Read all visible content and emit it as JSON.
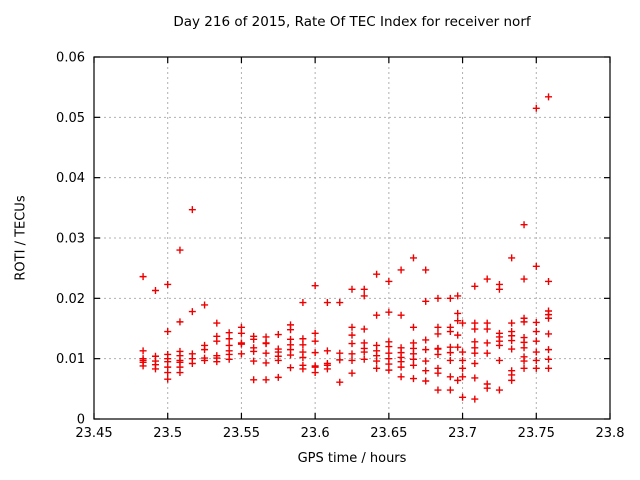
{
  "title": "Day 216 of 2015, Rate Of TEC Index for receiver norf",
  "colors": {
    "background": "#ffffff",
    "marker": "#ee0000",
    "grid": "#b0b0b0",
    "border": "#000000",
    "text": "#000000"
  },
  "chart_data": {
    "type": "scatter",
    "title": "Day 216 of 2015, Rate Of TEC Index for receiver norf",
    "xlabel": "GPS time / hours",
    "ylabel": "ROTI / TECUs",
    "xlim": [
      23.45,
      23.8
    ],
    "ylim": [
      0,
      0.06
    ],
    "x_ticks": [
      23.45,
      23.5,
      23.55,
      23.6,
      23.65,
      23.7,
      23.75,
      23.8
    ],
    "x_tick_labels": [
      "23.45",
      "23.5",
      "23.55",
      "23.6",
      "23.65",
      "23.7",
      "23.75",
      "23.8"
    ],
    "y_ticks": [
      0,
      0.01,
      0.02,
      0.03,
      0.04,
      0.05,
      0.06
    ],
    "y_tick_labels": [
      "0",
      "0.01",
      "0.02",
      "0.03",
      "0.04",
      "0.05",
      "0.06"
    ],
    "grid": true,
    "legend": "none",
    "marker": "plus",
    "series": [
      {
        "name": "ROTI",
        "color": "#ee0000",
        "columns": [
          {
            "x": 23.4833,
            "y": [
              0.0236,
              0.0113,
              0.01,
              0.0097,
              0.0094,
              0.0088
            ]
          },
          {
            "x": 23.4917,
            "y": [
              0.0213,
              0.0104,
              0.0096,
              0.009,
              0.0083
            ]
          },
          {
            "x": 23.5,
            "y": [
              0.0223,
              0.0145,
              0.0107,
              0.01,
              0.0095,
              0.0086,
              0.0077,
              0.0066
            ]
          },
          {
            "x": 23.5083,
            "y": [
              0.028,
              0.0161,
              0.0112,
              0.0105,
              0.0097,
              0.0094,
              0.0086,
              0.0077
            ]
          },
          {
            "x": 23.5167,
            "y": [
              0.0347,
              0.0178,
              0.0108,
              0.01,
              0.0092
            ]
          },
          {
            "x": 23.525,
            "y": [
              0.0189,
              0.0122,
              0.0115,
              0.0101,
              0.0097
            ]
          },
          {
            "x": 23.5333,
            "y": [
              0.0159,
              0.0137,
              0.0129,
              0.0105,
              0.0101,
              0.0095
            ]
          },
          {
            "x": 23.5417,
            "y": [
              0.0143,
              0.0133,
              0.0122,
              0.0113,
              0.0107,
              0.0099
            ]
          },
          {
            "x": 23.55,
            "y": [
              0.0152,
              0.0142,
              0.0126,
              0.0124,
              0.0108
            ]
          },
          {
            "x": 23.5583,
            "y": [
              0.0137,
              0.0132,
              0.0118,
              0.0112,
              0.0096,
              0.0065
            ]
          },
          {
            "x": 23.5667,
            "y": [
              0.0136,
              0.0126,
              0.0125,
              0.0109,
              0.0093,
              0.0065
            ]
          },
          {
            "x": 23.575,
            "y": [
              0.014,
              0.0116,
              0.0111,
              0.0104,
              0.0097,
              0.0069
            ]
          },
          {
            "x": 23.5833,
            "y": [
              0.0156,
              0.0148,
              0.0132,
              0.0123,
              0.0115,
              0.0106,
              0.0085
            ]
          },
          {
            "x": 23.5917,
            "y": [
              0.0193,
              0.0133,
              0.0123,
              0.0111,
              0.0102,
              0.0089,
              0.0083
            ]
          },
          {
            "x": 23.6,
            "y": [
              0.0221,
              0.0142,
              0.0129,
              0.011,
              0.0088,
              0.0086,
              0.0077
            ]
          },
          {
            "x": 23.6083,
            "y": [
              0.0193,
              0.0113,
              0.0092,
              0.0089,
              0.0083
            ]
          },
          {
            "x": 23.6167,
            "y": [
              0.0193,
              0.0109,
              0.0098,
              0.0061
            ]
          },
          {
            "x": 23.625,
            "y": [
              0.0215,
              0.0152,
              0.0139,
              0.0125,
              0.0108,
              0.0097,
              0.0076
            ]
          },
          {
            "x": 23.6333,
            "y": [
              0.0215,
              0.0204,
              0.0149,
              0.0126,
              0.0117,
              0.0111,
              0.0099
            ]
          },
          {
            "x": 23.6417,
            "y": [
              0.024,
              0.0172,
              0.0122,
              0.0113,
              0.0105,
              0.0096,
              0.0084
            ]
          },
          {
            "x": 23.65,
            "y": [
              0.0228,
              0.0177,
              0.0128,
              0.012,
              0.0109,
              0.01,
              0.0091,
              0.0081
            ]
          },
          {
            "x": 23.6583,
            "y": [
              0.0247,
              0.0172,
              0.0118,
              0.011,
              0.0102,
              0.0095,
              0.0086,
              0.007
            ]
          },
          {
            "x": 23.6667,
            "y": [
              0.0267,
              0.0152,
              0.0126,
              0.0117,
              0.0108,
              0.0099,
              0.0089,
              0.0067
            ]
          },
          {
            "x": 23.675,
            "y": [
              0.0247,
              0.0195,
              0.0131,
              0.0115,
              0.0096,
              0.008,
              0.0063
            ]
          },
          {
            "x": 23.6833,
            "y": [
              0.02,
              0.0152,
              0.0141,
              0.0117,
              0.0116,
              0.0107,
              0.0084,
              0.0076,
              0.0048
            ]
          },
          {
            "x": 23.6917,
            "y": [
              0.02,
              0.0152,
              0.0145,
              0.0119,
              0.011,
              0.0097,
              0.007,
              0.0048
            ]
          },
          {
            "x": 23.6967,
            "y": [
              0.0204,
              0.0175,
              0.0163,
              0.0139,
              0.0119,
              0.0064
            ]
          },
          {
            "x": 23.7,
            "y": [
              0.0159,
              0.0111,
              0.0097,
              0.0084,
              0.007,
              0.0036
            ]
          },
          {
            "x": 23.7083,
            "y": [
              0.022,
              0.0159,
              0.0149,
              0.0128,
              0.0118,
              0.0109,
              0.0092,
              0.0068,
              0.0033
            ]
          },
          {
            "x": 23.7167,
            "y": [
              0.0232,
              0.0159,
              0.0149,
              0.0126,
              0.0109,
              0.0058,
              0.0051
            ]
          },
          {
            "x": 23.725,
            "y": [
              0.0223,
              0.0215,
              0.0142,
              0.0136,
              0.0129,
              0.0122,
              0.0097,
              0.0048
            ]
          },
          {
            "x": 23.7333,
            "y": [
              0.0267,
              0.0159,
              0.0145,
              0.0138,
              0.013,
              0.0116,
              0.008,
              0.0073,
              0.0064
            ]
          },
          {
            "x": 23.7417,
            "y": [
              0.0322,
              0.0232,
              0.0167,
              0.0161,
              0.0135,
              0.0127,
              0.0118,
              0.0103,
              0.0096,
              0.0084
            ]
          },
          {
            "x": 23.75,
            "y": [
              0.0515,
              0.0253,
              0.016,
              0.0145,
              0.0129,
              0.0111,
              0.0097,
              0.0084
            ]
          },
          {
            "x": 23.7583,
            "y": [
              0.0534,
              0.0228,
              0.0179,
              0.0173,
              0.0167,
              0.0141,
              0.0115,
              0.0099,
              0.0084
            ]
          }
        ]
      }
    ]
  }
}
